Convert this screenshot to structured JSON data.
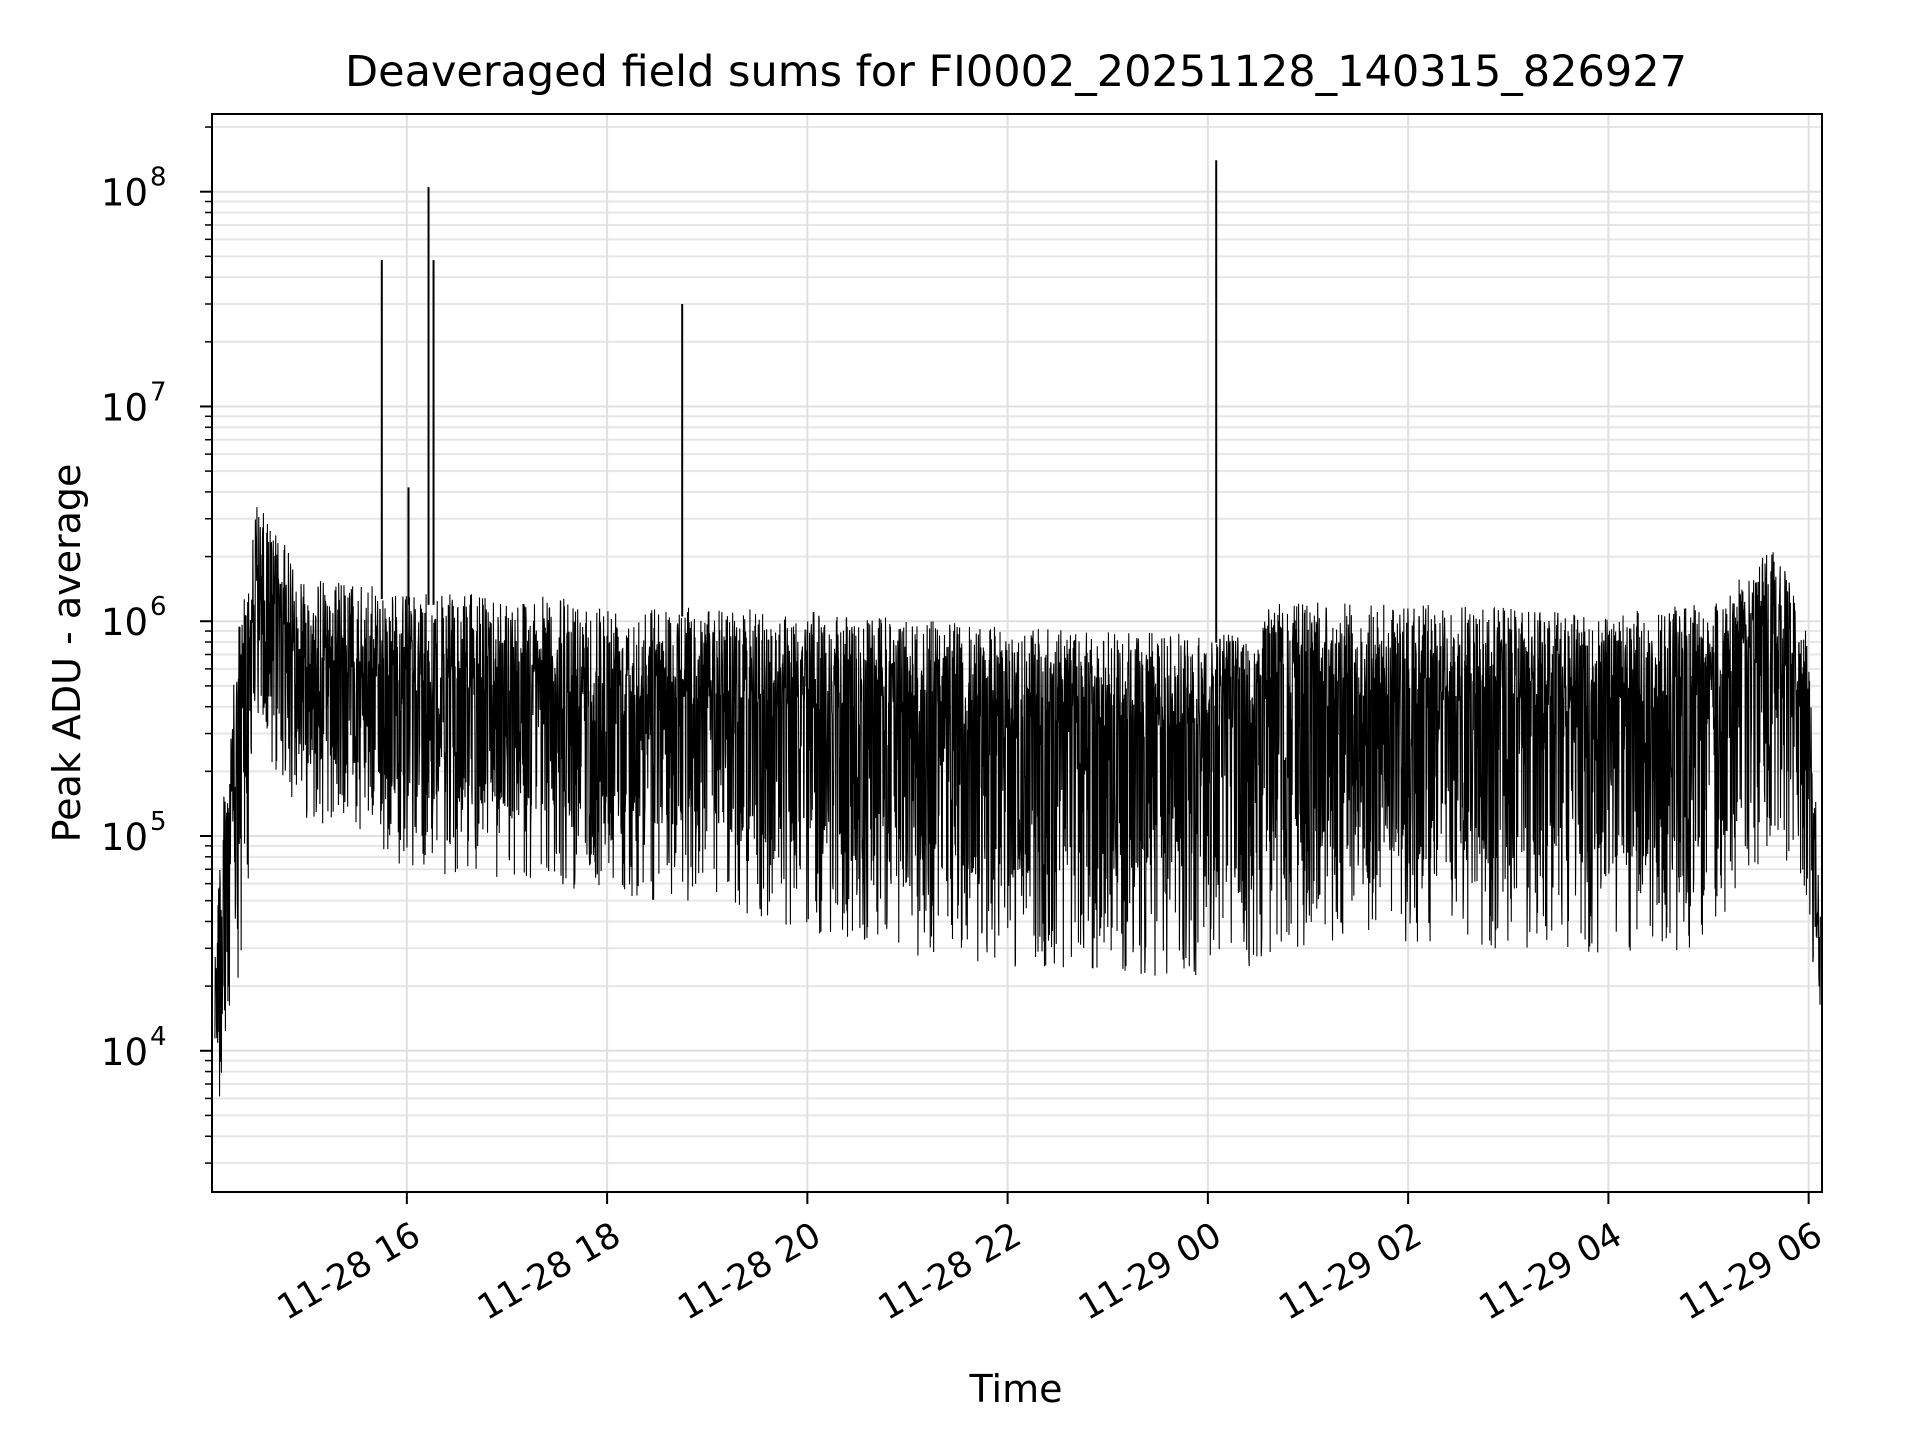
{
  "chart_data": {
    "type": "line",
    "title": "Deaveraged field sums for FI0002_20251128_140315_826927",
    "xlabel": "Time",
    "ylabel": "Peak ADU - average",
    "yscale": "log",
    "xlim": [
      "2025-11-28T14:03:15",
      "2025-11-29T06:08:00"
    ],
    "ylim": [
      2200,
      230000000
    ],
    "grid": true,
    "line_color": "#000000",
    "xticks": [
      {
        "t": "2025-11-28T16:00:00",
        "label": "11-28 16"
      },
      {
        "t": "2025-11-28T18:00:00",
        "label": "11-28 18"
      },
      {
        "t": "2025-11-28T20:00:00",
        "label": "11-28 20"
      },
      {
        "t": "2025-11-28T22:00:00",
        "label": "11-28 22"
      },
      {
        "t": "2025-11-29T00:00:00",
        "label": "11-29 00"
      },
      {
        "t": "2025-11-29T02:00:00",
        "label": "11-29 02"
      },
      {
        "t": "2025-11-29T04:00:00",
        "label": "11-29 04"
      },
      {
        "t": "2025-11-29T06:00:00",
        "label": "11-29 06"
      }
    ],
    "yticks": [
      {
        "v": 10000,
        "base": "10",
        "exp": "4"
      },
      {
        "v": 100000,
        "base": "10",
        "exp": "5"
      },
      {
        "v": 1000000,
        "base": "10",
        "exp": "6"
      },
      {
        "v": 10000000,
        "base": "10",
        "exp": "7"
      },
      {
        "v": 100000000,
        "base": "10",
        "exp": "8"
      }
    ],
    "series": [
      {
        "envelope": [
          [
            "2025-11-28T14:05:00",
            60000,
            4000
          ],
          [
            "2025-11-28T14:20:00",
            1200000,
            15000
          ],
          [
            "2025-11-28T14:30:00",
            4000000,
            250000
          ],
          [
            "2025-11-28T15:00:00",
            1800000,
            120000
          ],
          [
            "2025-11-28T15:30:00",
            1700000,
            100000
          ],
          [
            "2025-11-28T16:00:00",
            1500000,
            70000
          ],
          [
            "2025-11-28T17:00:00",
            1500000,
            60000
          ],
          [
            "2025-11-28T18:00:00",
            1400000,
            55000
          ],
          [
            "2025-11-28T19:00:00",
            1300000,
            45000
          ],
          [
            "2025-11-28T20:00:00",
            1250000,
            35000
          ],
          [
            "2025-11-28T21:00:00",
            1150000,
            28000
          ],
          [
            "2025-11-28T22:00:00",
            1050000,
            24000
          ],
          [
            "2025-11-28T23:00:00",
            1000000,
            22000
          ],
          [
            "2025-11-29T00:00:00",
            1000000,
            22000
          ],
          [
            "2025-11-29T00:30:00",
            1000000,
            25000
          ],
          [
            "2025-11-29T00:35:00",
            1400000,
            28000
          ],
          [
            "2025-11-29T01:00:00",
            1400000,
            30000
          ],
          [
            "2025-11-29T02:00:00",
            1350000,
            30000
          ],
          [
            "2025-11-29T03:00:00",
            1300000,
            30000
          ],
          [
            "2025-11-29T04:00:00",
            1200000,
            28000
          ],
          [
            "2025-11-29T05:00:00",
            1400000,
            30000
          ],
          [
            "2025-11-29T05:40:00",
            2500000,
            100000
          ],
          [
            "2025-11-29T06:00:00",
            1000000,
            40000
          ],
          [
            "2025-11-29T06:07:00",
            50000,
            12000
          ]
        ],
        "spikes": [
          [
            "2025-11-28T15:45:00",
            48000000
          ],
          [
            "2025-11-28T16:01:00",
            4200000
          ],
          [
            "2025-11-28T16:13:00",
            105000000
          ],
          [
            "2025-11-28T16:16:00",
            48000000
          ],
          [
            "2025-11-28T18:45:00",
            30000000
          ],
          [
            "2025-11-29T00:05:00",
            140000000
          ]
        ]
      }
    ]
  }
}
